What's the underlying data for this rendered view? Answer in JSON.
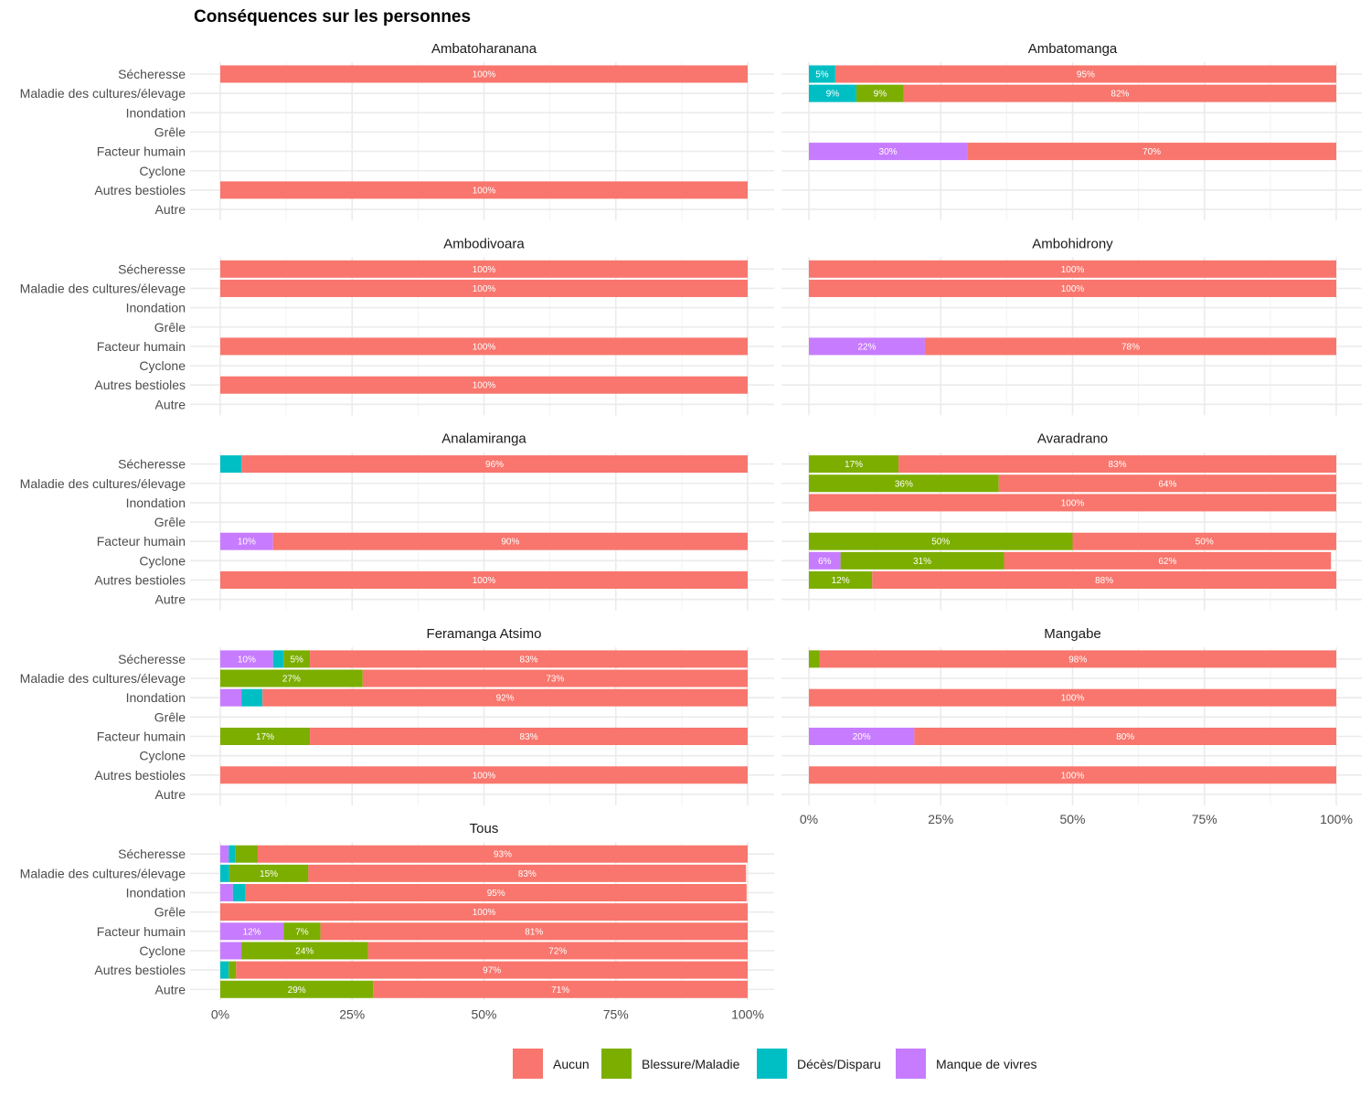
{
  "chart_data": {
    "type": "bar",
    "orientation": "horizontal",
    "stacked": true,
    "facet": "wrap",
    "title": "Conséquences sur les personnes",
    "xlabel": "",
    "ylabel": "",
    "xlim": [
      0,
      100
    ],
    "x_ticks": [
      "0%",
      "25%",
      "50%",
      "75%",
      "100%"
    ],
    "grid": true,
    "categories": [
      "Sécheresse",
      "Maladie des cultures/élevage",
      "Inondation",
      "Grêle",
      "Facteur humain",
      "Cyclone",
      "Autres bestioles",
      "Autre"
    ],
    "series_names": [
      "Manque de vivres",
      "Décès/Disparu",
      "Blessure/Maladie",
      "Aucun"
    ],
    "colors": {
      "Aucun": "#F8766D",
      "Blessure/Maladie": "#7CAE00",
      "Décès/Disparu": "#00BFC4",
      "Manque de vivres": "#C77CFF"
    },
    "legend": {
      "position": "bottom",
      "entries": [
        "Aucun",
        "Blessure/Maladie",
        "Décès/Disparu",
        "Manque de vivres"
      ]
    },
    "panels": [
      {
        "name": "Ambatoharanana",
        "bars": {
          "Sécheresse": {
            "Manque de vivres": 0,
            "Décès/Disparu": 0,
            "Blessure/Maladie": 0,
            "Aucun": 100
          },
          "Autres bestioles": {
            "Manque de vivres": 0,
            "Décès/Disparu": 0,
            "Blessure/Maladie": 0,
            "Aucun": 100
          }
        }
      },
      {
        "name": "Ambatomanga",
        "bars": {
          "Sécheresse": {
            "Manque de vivres": 0,
            "Décès/Disparu": 5,
            "Blessure/Maladie": 0,
            "Aucun": 95
          },
          "Maladie des cultures/élevage": {
            "Manque de vivres": 0,
            "Décès/Disparu": 9,
            "Blessure/Maladie": 9,
            "Aucun": 82
          },
          "Facteur humain": {
            "Manque de vivres": 30,
            "Décès/Disparu": 0,
            "Blessure/Maladie": 0,
            "Aucun": 70
          }
        }
      },
      {
        "name": "Ambodivoara",
        "bars": {
          "Sécheresse": {
            "Manque de vivres": 0,
            "Décès/Disparu": 0,
            "Blessure/Maladie": 0,
            "Aucun": 100
          },
          "Maladie des cultures/élevage": {
            "Manque de vivres": 0,
            "Décès/Disparu": 0,
            "Blessure/Maladie": 0,
            "Aucun": 100
          },
          "Facteur humain": {
            "Manque de vivres": 0,
            "Décès/Disparu": 0,
            "Blessure/Maladie": 0,
            "Aucun": 100
          },
          "Autres bestioles": {
            "Manque de vivres": 0,
            "Décès/Disparu": 0,
            "Blessure/Maladie": 0,
            "Aucun": 100
          }
        }
      },
      {
        "name": "Ambohidrony",
        "bars": {
          "Sécheresse": {
            "Manque de vivres": 0,
            "Décès/Disparu": 0,
            "Blessure/Maladie": 0,
            "Aucun": 100
          },
          "Maladie des cultures/élevage": {
            "Manque de vivres": 0,
            "Décès/Disparu": 0,
            "Blessure/Maladie": 0,
            "Aucun": 100
          },
          "Facteur humain": {
            "Manque de vivres": 22,
            "Décès/Disparu": 0,
            "Blessure/Maladie": 0,
            "Aucun": 78
          }
        }
      },
      {
        "name": "Analamiranga",
        "bars": {
          "Sécheresse": {
            "Manque de vivres": 0,
            "Décès/Disparu": 4,
            "Blessure/Maladie": 0,
            "Aucun": 96
          },
          "Facteur humain": {
            "Manque de vivres": 10,
            "Décès/Disparu": 0,
            "Blessure/Maladie": 0,
            "Aucun": 90
          },
          "Autres bestioles": {
            "Manque de vivres": 0,
            "Décès/Disparu": 0,
            "Blessure/Maladie": 0,
            "Aucun": 100
          }
        }
      },
      {
        "name": "Avaradrano",
        "bars": {
          "Sécheresse": {
            "Manque de vivres": 0,
            "Décès/Disparu": 0,
            "Blessure/Maladie": 17,
            "Aucun": 83
          },
          "Maladie des cultures/élevage": {
            "Manque de vivres": 0,
            "Décès/Disparu": 0,
            "Blessure/Maladie": 36,
            "Aucun": 64
          },
          "Inondation": {
            "Manque de vivres": 0,
            "Décès/Disparu": 0,
            "Blessure/Maladie": 0,
            "Aucun": 100
          },
          "Facteur humain": {
            "Manque de vivres": 0,
            "Décès/Disparu": 0,
            "Blessure/Maladie": 50,
            "Aucun": 50
          },
          "Cyclone": {
            "Manque de vivres": 6,
            "Décès/Disparu": 0,
            "Blessure/Maladie": 31,
            "Aucun": 62
          },
          "Autres bestioles": {
            "Manque de vivres": 0,
            "Décès/Disparu": 0,
            "Blessure/Maladie": 12,
            "Aucun": 88
          }
        }
      },
      {
        "name": "Feramanga Atsimo",
        "bars": {
          "Sécheresse": {
            "Manque de vivres": 10,
            "Décès/Disparu": 2,
            "Blessure/Maladie": 5,
            "Aucun": 83
          },
          "Maladie des cultures/élevage": {
            "Manque de vivres": 0,
            "Décès/Disparu": 0,
            "Blessure/Maladie": 27,
            "Aucun": 73
          },
          "Inondation": {
            "Manque de vivres": 4,
            "Décès/Disparu": 4,
            "Blessure/Maladie": 0,
            "Aucun": 92
          },
          "Facteur humain": {
            "Manque de vivres": 0,
            "Décès/Disparu": 0,
            "Blessure/Maladie": 17,
            "Aucun": 83
          },
          "Autres bestioles": {
            "Manque de vivres": 0,
            "Décès/Disparu": 0,
            "Blessure/Maladie": 0,
            "Aucun": 100
          }
        }
      },
      {
        "name": "Mangabe",
        "bars": {
          "Sécheresse": {
            "Manque de vivres": 0,
            "Décès/Disparu": 0,
            "Blessure/Maladie": 2,
            "Aucun": 98
          },
          "Inondation": {
            "Manque de vivres": 0,
            "Décès/Disparu": 0,
            "Blessure/Maladie": 0,
            "Aucun": 100
          },
          "Facteur humain": {
            "Manque de vivres": 20,
            "Décès/Disparu": 0,
            "Blessure/Maladie": 0,
            "Aucun": 80
          },
          "Autres bestioles": {
            "Manque de vivres": 0,
            "Décès/Disparu": 0,
            "Blessure/Maladie": 0,
            "Aucun": 100
          }
        }
      },
      {
        "name": "Tous",
        "bars": {
          "Sécheresse": {
            "Manque de vivres": 1.6,
            "Décès/Disparu": 1.2,
            "Blessure/Maladie": 4.3,
            "Aucun": 93
          },
          "Maladie des cultures/élevage": {
            "Manque de vivres": 0,
            "Décès/Disparu": 1.7,
            "Blessure/Maladie": 15,
            "Aucun": 83
          },
          "Inondation": {
            "Manque de vivres": 2.4,
            "Décès/Disparu": 2.4,
            "Blessure/Maladie": 0,
            "Aucun": 95
          },
          "Grêle": {
            "Manque de vivres": 0,
            "Décès/Disparu": 0,
            "Blessure/Maladie": 0,
            "Aucun": 100
          },
          "Facteur humain": {
            "Manque de vivres": 12,
            "Décès/Disparu": 0,
            "Blessure/Maladie": 7,
            "Aucun": 81
          },
          "Cyclone": {
            "Manque de vivres": 4,
            "Décès/Disparu": 0,
            "Blessure/Maladie": 24,
            "Aucun": 72
          },
          "Autres bestioles": {
            "Manque de vivres": 0,
            "Décès/Disparu": 1.6,
            "Blessure/Maladie": 1.4,
            "Aucun": 97
          },
          "Autre": {
            "Manque de vivres": 0,
            "Décès/Disparu": 0,
            "Blessure/Maladie": 29,
            "Aucun": 71
          }
        }
      }
    ],
    "label_threshold_percent": 5
  }
}
